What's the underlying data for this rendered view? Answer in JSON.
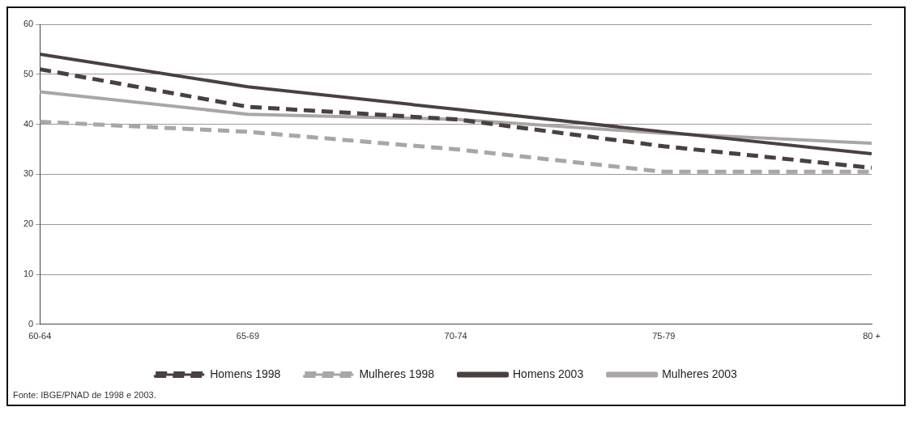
{
  "chart_data": {
    "type": "line",
    "categories": [
      "60-64",
      "65-69",
      "70-74",
      "75-79",
      "80 +"
    ],
    "series": [
      {
        "name": "Homens 1998",
        "color": "#4a4040",
        "line_style": "dashed",
        "values": [
          51,
          43.5,
          41,
          35.6,
          31.3
        ]
      },
      {
        "name": "Mulheres 1998",
        "color": "#aaa6a6",
        "line_style": "dashed",
        "values": [
          40.5,
          38.5,
          35,
          30.5,
          30.5
        ]
      },
      {
        "name": "Homens 2003",
        "color": "#4a4040",
        "line_style": "solid",
        "values": [
          54,
          47.5,
          43,
          38.5,
          34.1
        ]
      },
      {
        "name": "Mulheres 2003",
        "color": "#aaa6a6",
        "line_style": "solid",
        "values": [
          46.5,
          42,
          41,
          38.2,
          36.2
        ]
      }
    ],
    "ylim": [
      0,
      60
    ],
    "yticks": [
      0,
      10,
      20,
      30,
      40,
      50,
      60
    ],
    "grid": "y",
    "legend": "bottom",
    "marker": "none",
    "annotations": [
      "Fonte: IBGE/PNAD de 1998 e 2003."
    ]
  }
}
